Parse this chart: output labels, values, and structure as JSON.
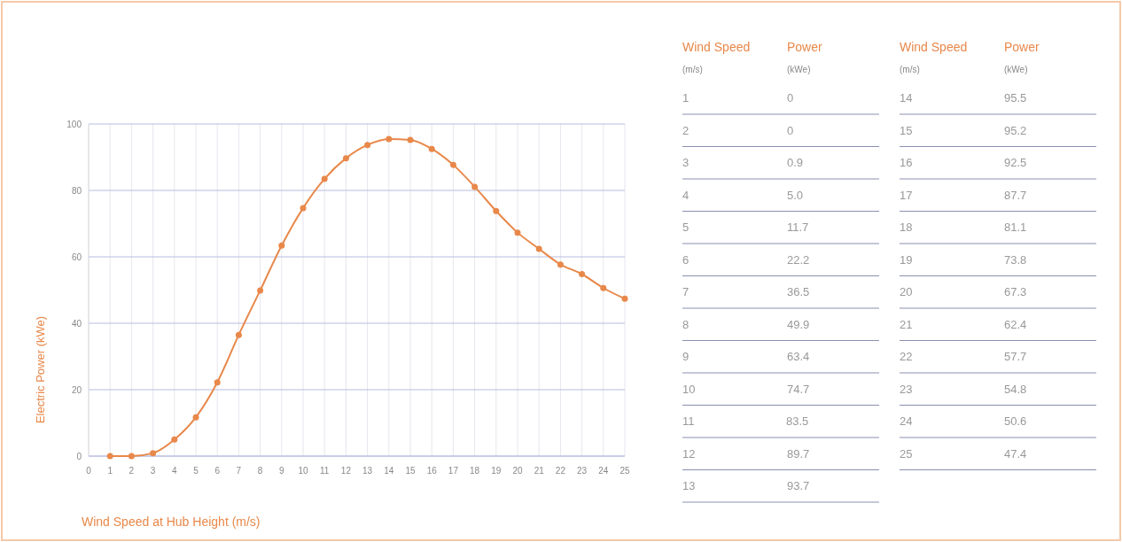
{
  "chart_data": [
    {
      "type": "line",
      "xlabel": "Wind Speed at Hub Height (m/s)",
      "ylabel": "Electric Power (kWe)",
      "x": [
        1,
        2,
        3,
        4,
        5,
        6,
        7,
        8,
        9,
        10,
        11,
        12,
        13,
        14,
        15,
        16,
        17,
        18,
        19,
        20,
        21,
        22,
        23,
        24,
        25
      ],
      "series": [
        {
          "color": "#e8884a",
          "values": [
            0,
            0,
            0.9,
            5.0,
            11.7,
            22.2,
            36.5,
            49.9,
            63.4,
            74.7,
            83.5,
            89.7,
            93.7,
            95.5,
            95.2,
            92.5,
            87.7,
            81.1,
            73.8,
            67.3,
            62.4,
            57.7,
            54.8,
            50.6,
            47.4
          ]
        }
      ],
      "xlim": [
        0,
        25
      ],
      "xticks": [
        0,
        1,
        2,
        3,
        4,
        5,
        6,
        7,
        8,
        9,
        10,
        11,
        12,
        13,
        14,
        15,
        16,
        17,
        18,
        19,
        20,
        21,
        22,
        23,
        24,
        25
      ],
      "ylim": [
        0,
        100
      ],
      "yticks": [
        0,
        20,
        40,
        60,
        80,
        100
      ],
      "grid": true,
      "marker": "circle",
      "line_style": "solid"
    },
    {
      "type": "other",
      "annotations": [
        "Wind Speed",
        "(m/s)",
        "Power",
        "(kWe)",
        "1 0",
        "2 0",
        "3 0.9",
        "4 5.0",
        "5 11.7",
        "6 22.2",
        "7 36.5",
        "8 49.9",
        "9 63.4",
        "10 74.7",
        "11 83.5",
        "12 89.7",
        "13 93.7",
        "Wind Speed",
        "(m/s)",
        "Power",
        "(kWe)",
        "14 95.5",
        "15 95.2",
        "16 92.5",
        "17 87.7",
        "18 81.1",
        "19 73.8",
        "20 67.3",
        "21 62.4",
        "22 57.7",
        "23 54.8",
        "24 50.6",
        "25 47.4"
      ]
    }
  ]
}
